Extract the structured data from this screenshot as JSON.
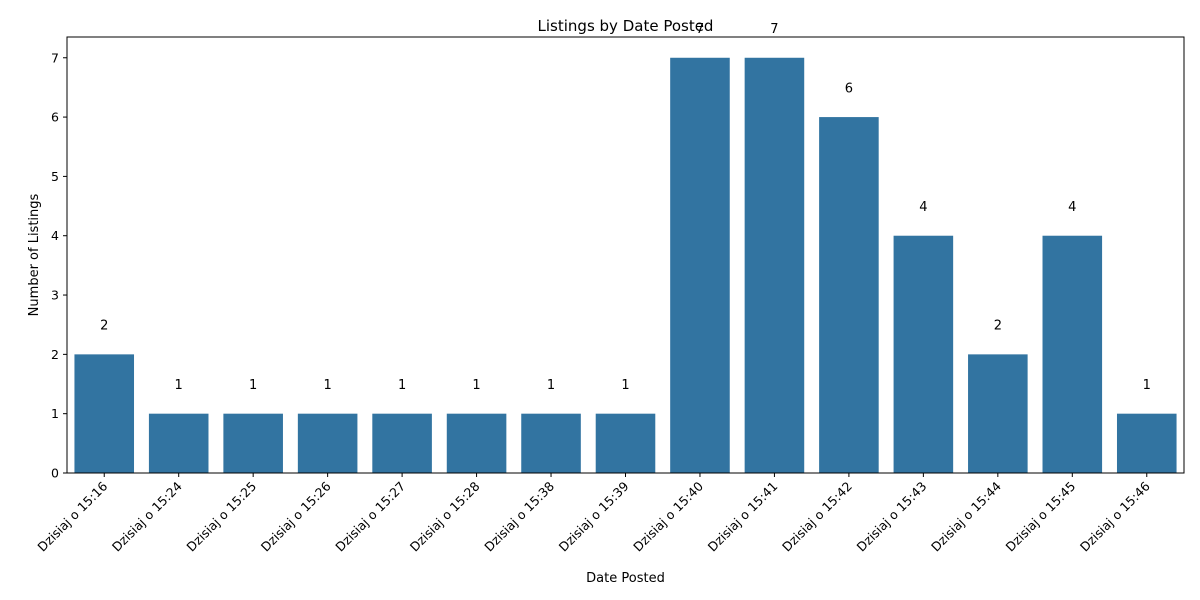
{
  "chart_data": {
    "type": "bar",
    "title": "Listings by Date Posted",
    "xlabel": "Date Posted",
    "ylabel": "Number of Listings",
    "categories": [
      "Dzisiaj o 15:16",
      "Dzisiaj o 15:24",
      "Dzisiaj o 15:25",
      "Dzisiaj o 15:26",
      "Dzisiaj o 15:27",
      "Dzisiaj o 15:28",
      "Dzisiaj o 15:38",
      "Dzisiaj o 15:39",
      "Dzisiaj o 15:40",
      "Dzisiaj o 15:41",
      "Dzisiaj o 15:42",
      "Dzisiaj o 15:43",
      "Dzisiaj o 15:44",
      "Dzisiaj o 15:45",
      "Dzisiaj o 15:46"
    ],
    "values": [
      2,
      1,
      1,
      1,
      1,
      1,
      1,
      1,
      7,
      7,
      6,
      4,
      2,
      4,
      1
    ],
    "ylim": [
      0,
      7.35
    ],
    "yticks": [
      0,
      1,
      2,
      3,
      4,
      5,
      6,
      7
    ],
    "grid": false,
    "bar_color": "#3274a1",
    "data_labels": true
  }
}
